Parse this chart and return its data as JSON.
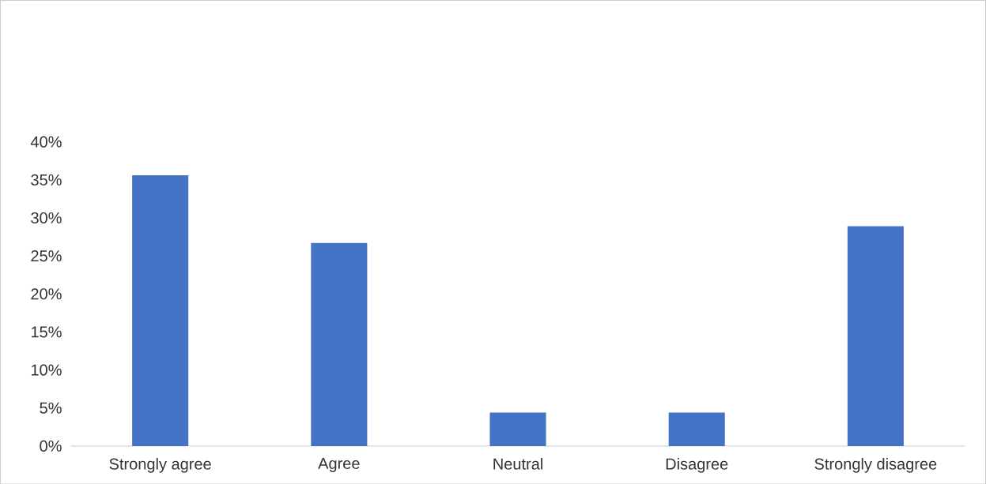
{
  "chart_data": {
    "type": "bar",
    "categories": [
      "Strongly agree",
      "Agree",
      "Neutral",
      "Disagree",
      "Strongly disagree"
    ],
    "values": [
      35.6,
      26.7,
      4.4,
      4.4,
      28.9
    ],
    "color": "#4472c4",
    "ylim": [
      0,
      40
    ],
    "yticks": [
      {
        "value": 0,
        "label": "0%"
      },
      {
        "value": 5,
        "label": "5%"
      },
      {
        "value": 10,
        "label": "10%"
      },
      {
        "value": 15,
        "label": "15%"
      },
      {
        "value": 20,
        "label": "20%"
      },
      {
        "value": 25,
        "label": "25%"
      },
      {
        "value": 30,
        "label": "30%"
      },
      {
        "value": 35,
        "label": "35%"
      },
      {
        "value": 40,
        "label": "40%"
      }
    ]
  }
}
